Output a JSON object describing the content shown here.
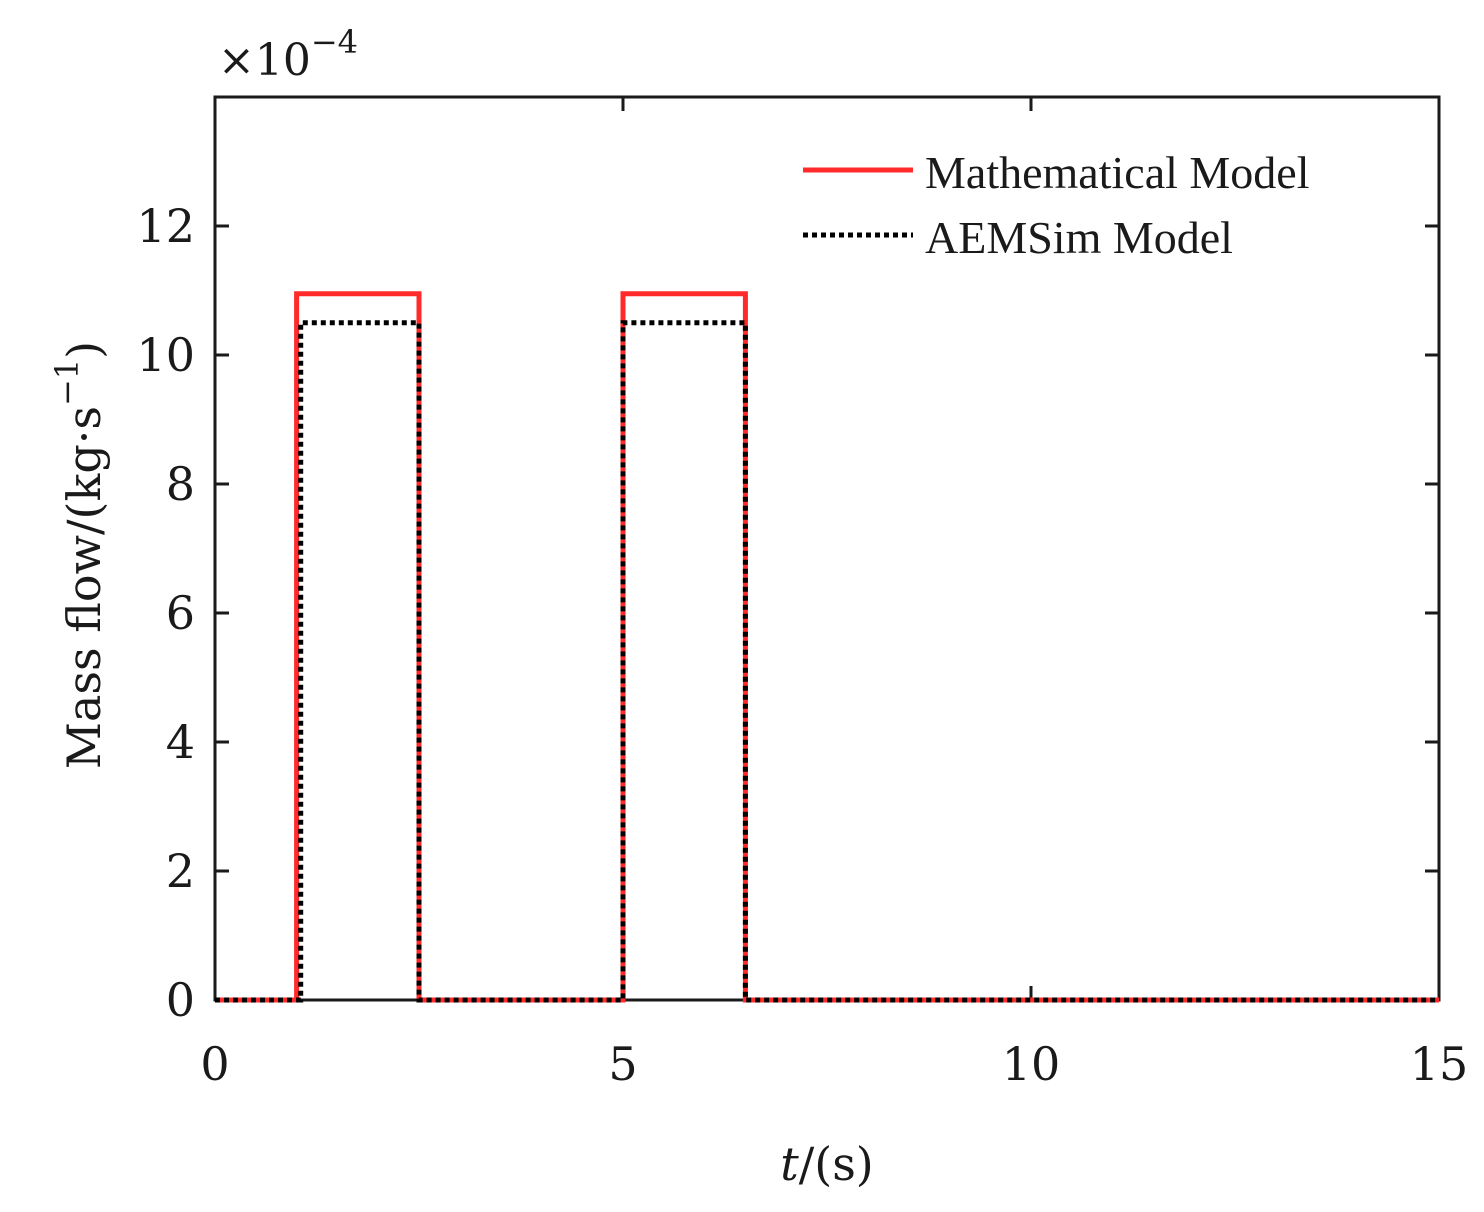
{
  "chart_data": {
    "type": "line",
    "xlabel_italic": "t",
    "xlabel_rest": "/(s)",
    "ylabel_main": "Mass flow/(kg·s",
    "ylabel_sup": "−1",
    "ylabel_close": ")",
    "exponent_base": "×10",
    "exponent_power": "−4",
    "xlim": [
      0,
      15
    ],
    "ylim": [
      0,
      14
    ],
    "xticks": [
      0,
      5,
      10,
      15
    ],
    "yticks": [
      0,
      2,
      4,
      6,
      8,
      10,
      12
    ],
    "x_tick_labels": [
      "0",
      "5",
      "10",
      "15"
    ],
    "y_tick_labels": [
      "0",
      "2",
      "4",
      "6",
      "8",
      "10",
      "12"
    ],
    "grid": false,
    "legend_position": "top-right",
    "series": [
      {
        "name": "Mathematical Model",
        "color": "#ff2a2a",
        "style": "solid",
        "x": [
          0,
          1.0,
          1.0,
          2.5,
          2.5,
          5.0,
          5.0,
          6.5,
          6.5,
          15
        ],
        "y": [
          0,
          0,
          10.95,
          10.95,
          0,
          0,
          10.95,
          10.95,
          0,
          0
        ]
      },
      {
        "name": "AEMSim Model",
        "color": "#000000",
        "style": "dotted",
        "x": [
          0,
          1.05,
          1.05,
          2.5,
          2.5,
          5.0,
          5.0,
          6.5,
          6.5,
          15
        ],
        "y": [
          0,
          0,
          10.5,
          10.5,
          0,
          0,
          10.5,
          10.5,
          0,
          0
        ]
      }
    ]
  }
}
